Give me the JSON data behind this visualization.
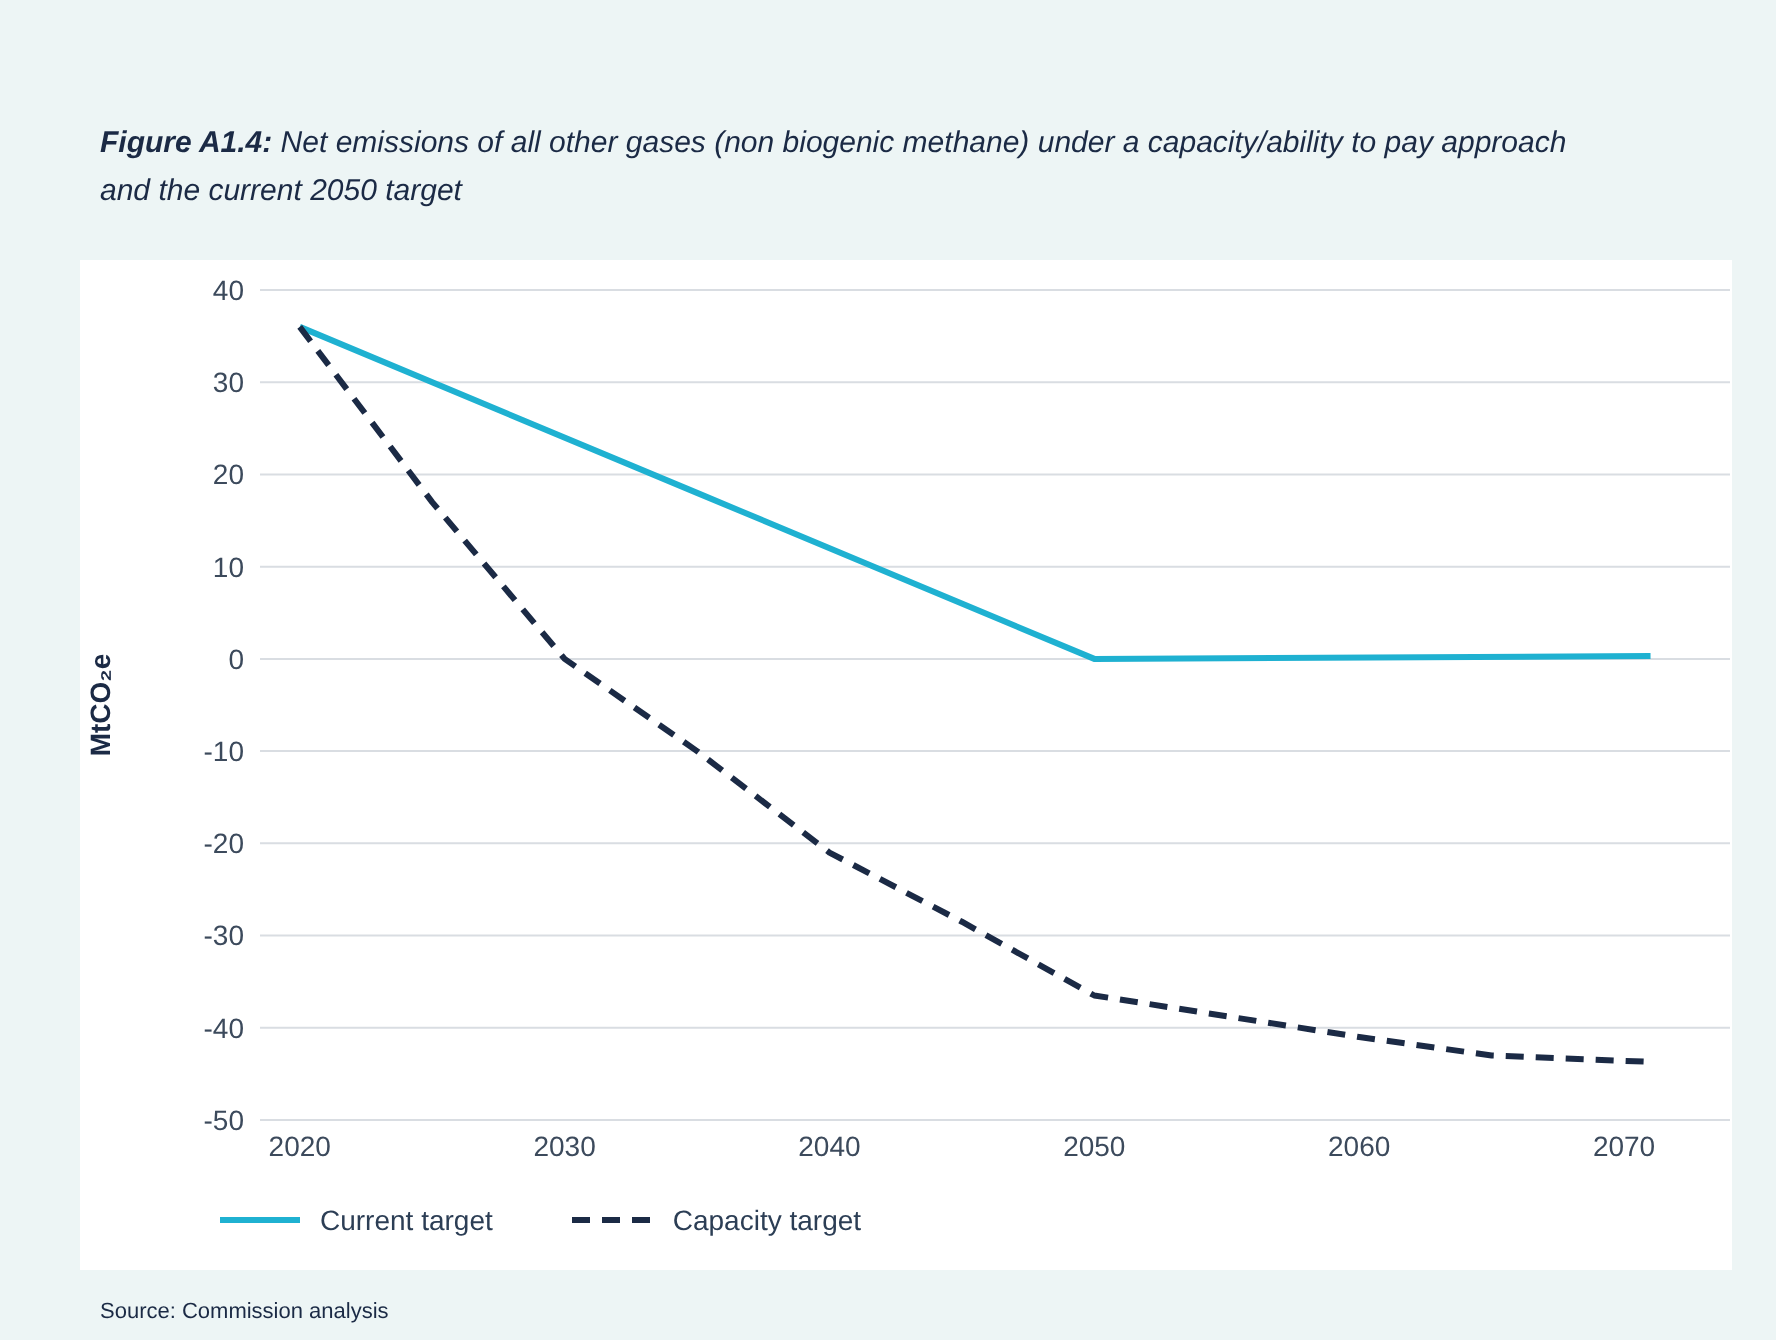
{
  "chart_data": {
    "type": "line",
    "title": "Figure A1.4: Net emissions of all other gases (non biogenic methane) under a capacity/ability to pay approach and the current 2050 target",
    "ylabel": "MtCO₂e",
    "annotations": [
      "Source: Commission analysis"
    ],
    "series": [
      {
        "name": "Current target",
        "color": "#1fb1d1",
        "line_style": "solid",
        "x": [
          2020,
          2035,
          2050,
          2071
        ],
        "values": [
          36,
          18,
          0,
          0.3
        ]
      },
      {
        "name": "Capacity target",
        "color": "#1b2a45",
        "line_style": "dashed",
        "x": [
          2020,
          2025,
          2030,
          2035,
          2040,
          2045,
          2050,
          2060,
          2065,
          2071
        ],
        "values": [
          36,
          17,
          0,
          -10,
          -21,
          -28.5,
          -36.5,
          -41,
          -43,
          -43.7
        ]
      }
    ],
    "xlim": [
      2018.5,
      2074
    ],
    "xticks": [
      2020,
      2030,
      2040,
      2050,
      2060,
      2070
    ],
    "ylim": [
      -50,
      40
    ],
    "yticks": [
      -50,
      -40,
      -30,
      -20,
      -10,
      0,
      10,
      20,
      30,
      40
    ],
    "grid": "y",
    "legend": "bottom left",
    "marker": "none"
  }
}
